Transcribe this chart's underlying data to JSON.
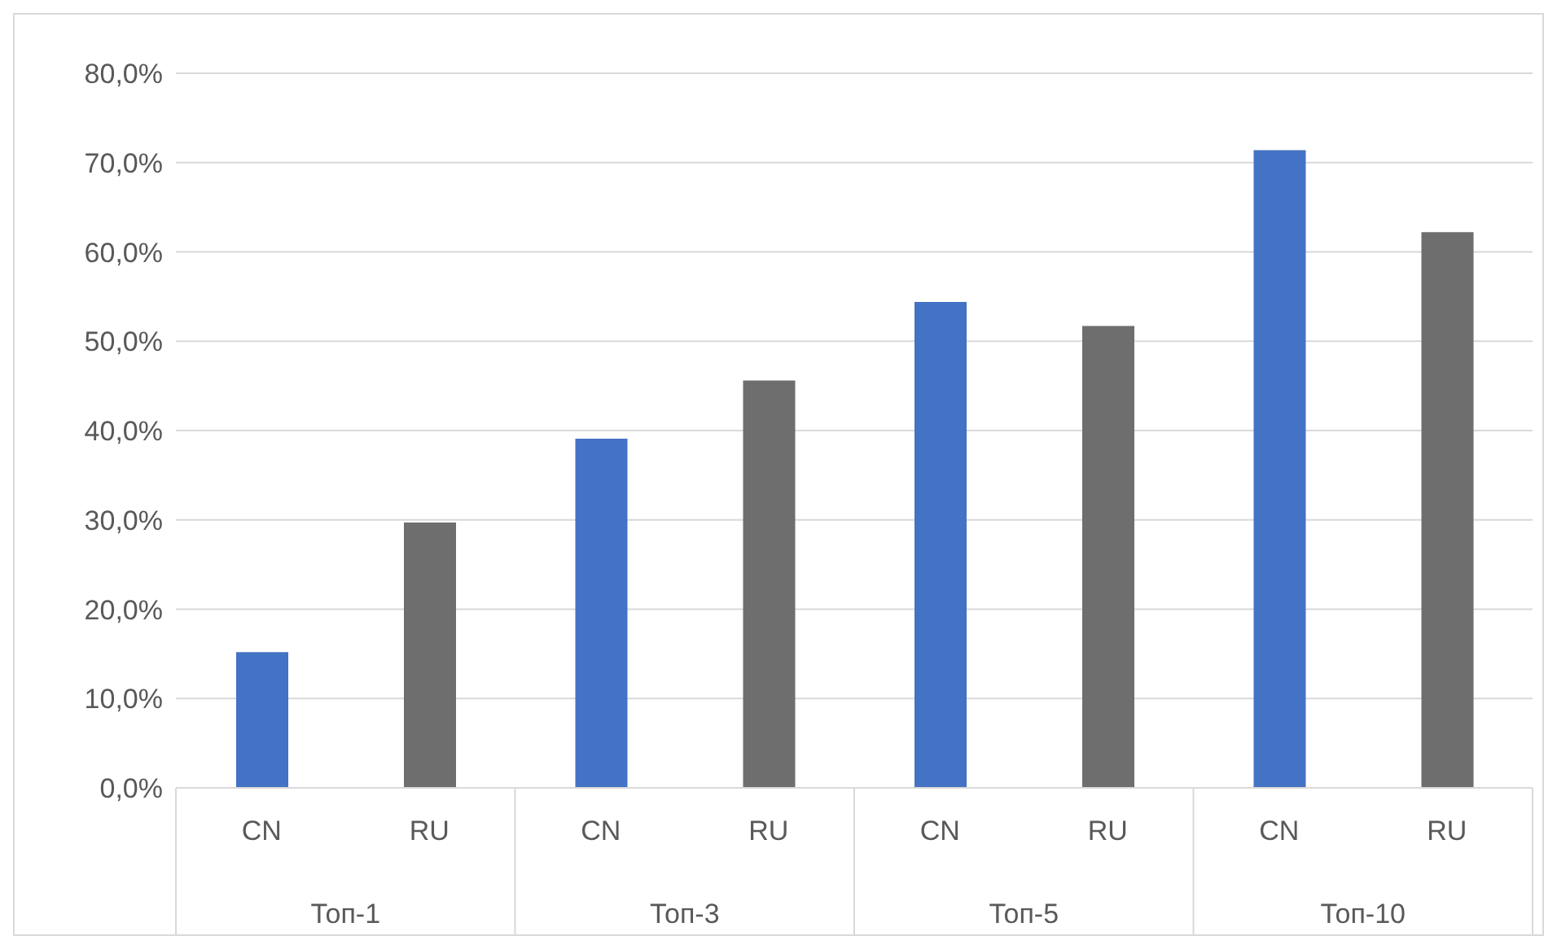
{
  "chart_data": {
    "type": "bar",
    "categories": [
      "Топ-1",
      "Топ-3",
      "Топ-5",
      "Топ-10"
    ],
    "series": [
      {
        "name": "CN",
        "color": "#4472c4",
        "values": [
          15.2,
          39.1,
          54.4,
          71.4
        ]
      },
      {
        "name": "RU",
        "color": "#6e6e6e",
        "values": [
          29.7,
          45.6,
          51.7,
          62.2
        ]
      }
    ],
    "ylim": [
      0,
      80
    ],
    "yticks": [
      {
        "value": 0,
        "label": "0,0%"
      },
      {
        "value": 10,
        "label": "10,0%"
      },
      {
        "value": 20,
        "label": "20,0%"
      },
      {
        "value": 30,
        "label": "30,0%"
      },
      {
        "value": 40,
        "label": "40,0%"
      },
      {
        "value": 50,
        "label": "50,0%"
      },
      {
        "value": 60,
        "label": "60,0%"
      },
      {
        "value": 70,
        "label": "70,0%"
      },
      {
        "value": 80,
        "label": "80,0%"
      }
    ],
    "grid": "y",
    "legend": false
  }
}
